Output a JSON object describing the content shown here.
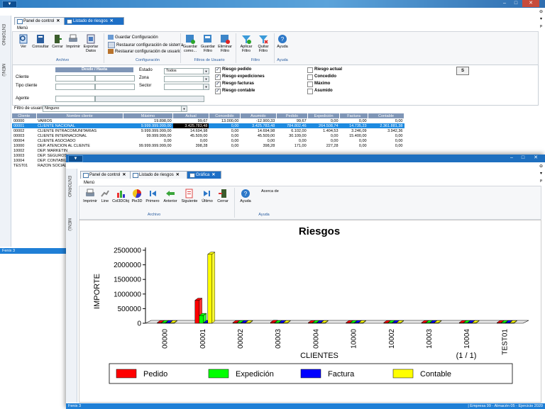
{
  "back_window": {
    "tabs": [
      {
        "label": "Panel de control"
      },
      {
        "label": "Listado de riesgos"
      }
    ],
    "menu_label": "Menú",
    "sidebar_labels": [
      "ENTORNO",
      "MENÚ"
    ],
    "ribbon": {
      "archivo_buttons": [
        "Ver",
        "Consultar",
        "Cerrar",
        "Imprimir",
        "Exportar Datos"
      ],
      "config_items": [
        "Guardar Configuración",
        "Restaurar configuración de sistema",
        "Restaurar configuración de usuario"
      ],
      "user_filter_buttons": [
        "Guardar como...",
        "Guardar Filtro",
        "Eliminar Filtro"
      ],
      "filter_buttons": [
        "Aplicar Filtro",
        "Quitar Filtro"
      ],
      "help_button": "Ayuda",
      "groups": [
        "Archivo",
        "Configuración",
        "Filtros de Usuario",
        "Filtro",
        "Ayuda"
      ]
    },
    "filters": {
      "range_header": "Desde / Hasta",
      "cliente_label": "Cliente",
      "tipo_cliente_label": "Tipo cliente",
      "agente_label": "Agente",
      "estado_label": "Estado",
      "estado_value": "Todos",
      "zona_label": "Zona",
      "sector_label": "Sector",
      "checks_left": [
        {
          "label": "Riesgo pedido",
          "checked": true
        },
        {
          "label": "Riesgo expediciones",
          "checked": true
        },
        {
          "label": "Riesgo facturas",
          "checked": true
        },
        {
          "label": "Riesgo contable",
          "checked": true
        }
      ],
      "checks_right": [
        {
          "label": "Riesgo actual",
          "checked": false
        },
        {
          "label": "Concedido",
          "checked": false
        },
        {
          "label": "Máximo",
          "checked": false
        },
        {
          "label": "Asumido",
          "checked": false
        }
      ],
      "s_button": "S",
      "user_filter_label": "Filtro de usuario",
      "user_filter_value": "Ninguno"
    },
    "table": {
      "headers": [
        "Cliente",
        "Nombre cliente",
        "Máximo",
        "Actual",
        "Concedido",
        "Asumido",
        "Pedido",
        "Expedición",
        "Factura",
        "Contable"
      ],
      "rows": [
        [
          "00000",
          "VARIOS",
          "19.898,00",
          "99,67",
          "13.000,00",
          "-12.900,33",
          "99,67",
          "0,00",
          "0,00",
          "0,00"
        ],
        [
          "00001",
          "CLIENTE NACIONAL",
          "9.999.999.999,00",
          "3.425.783,48",
          "0,00",
          "3.425.783,48",
          "784.802,46",
          "264.508,74",
          "14.735,23",
          "2.361.881,38"
        ],
        [
          "00002",
          "CLIENTE INTRACOMUNITARIAS",
          "9.999.999.999,00",
          "14.694,98",
          "0,00",
          "14.694,98",
          "6.102,00",
          "1.404,53",
          "3.246,09",
          "3.942,36"
        ],
        [
          "00003",
          "CLIENTE INTERNACIONAL",
          "99.999.999,00",
          "45.509,00",
          "0,00",
          "45.509,00",
          "30.109,00",
          "0,00",
          "15.400,00",
          "0,00"
        ],
        [
          "00004",
          "CLIENTE ASOCIADO",
          "0,00",
          "0,00",
          "0,00",
          "0,00",
          "0,00",
          "0,00",
          "0,00",
          "0,00"
        ],
        [
          "10000",
          "DEP. ATENCION AL CLIENTE",
          "99.999.999.999,00",
          "398,28",
          "0,00",
          "398,28",
          "171,00",
          "227,28",
          "0,00",
          "0,00"
        ],
        [
          "10002",
          "DEP. MARKETIN",
          "",
          "",
          "",
          "",
          "",
          "",
          "",
          ""
        ],
        [
          "10003",
          "DEP. SEGUROS",
          "",
          "",
          "",
          "",
          "",
          "",
          "",
          ""
        ],
        [
          "10004",
          "DEP. CONTABIL",
          "",
          "",
          "",
          "",
          "",
          "",
          "",
          ""
        ],
        [
          "TEST01",
          "RAZON SOCIAL",
          "",
          "",
          "",
          "",
          "",
          "",
          "",
          ""
        ]
      ],
      "selected_row": 1
    },
    "status_left": "Fenix 3"
  },
  "front_window": {
    "tabs": [
      {
        "label": "Panel de control"
      },
      {
        "label": "Listado de riesgos"
      },
      {
        "label": "Gráfica"
      }
    ],
    "menu_label": "Menú",
    "sidebar_labels": [
      "ENTORNO",
      "MENÚ"
    ],
    "ribbon": {
      "archivo_buttons": [
        "Imprimir",
        "Line",
        "Col3DObj",
        "Pie3D",
        "Primero",
        "Anterior",
        "Siguiente",
        "Último",
        "Cerrar"
      ],
      "help_button": "Ayuda",
      "acerca": "Acerca de",
      "groups": [
        "Archivo",
        "Ayuda"
      ]
    },
    "status_left": "Fenix 3",
    "status_right": "| Empresa 99 - Almacén 05 - Ejercicio 2020"
  },
  "chart_data": {
    "type": "bar",
    "title": "Riesgos",
    "xlabel": "CLIENTES",
    "ylabel": "IMPORTE",
    "page_indicator": "(1 / 1)",
    "categories": [
      "00000",
      "00001",
      "00002",
      "00003",
      "00004",
      "10000",
      "10002",
      "10003",
      "10004",
      "TEST01"
    ],
    "ylim": [
      0,
      2500000
    ],
    "yticks": [
      "0",
      "500000",
      "1000000",
      "1500000",
      "2000000",
      "2500000"
    ],
    "series": [
      {
        "name": "Pedido",
        "color": "#ff0000",
        "values": [
          99.67,
          784802.46,
          6102,
          30109,
          0,
          171,
          0,
          0,
          0,
          0
        ]
      },
      {
        "name": "Expedición",
        "color": "#00ff00",
        "values": [
          0,
          264508.74,
          1404.53,
          0,
          0,
          227.28,
          0,
          0,
          0,
          0
        ]
      },
      {
        "name": "Factura",
        "color": "#0000ff",
        "values": [
          0,
          14735.23,
          3246.09,
          15400,
          0,
          0,
          0,
          0,
          0,
          0
        ]
      },
      {
        "name": "Contable",
        "color": "#ffff00",
        "values": [
          0,
          2361881.38,
          3942.36,
          0,
          0,
          0,
          0,
          0,
          0,
          0
        ]
      }
    ],
    "grid": false,
    "legend": "bottom"
  }
}
